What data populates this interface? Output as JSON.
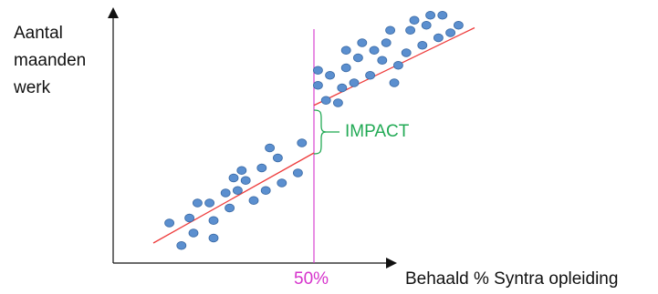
{
  "chart_data": {
    "type": "scatter",
    "title": "",
    "ylabel": "Aantal\nmaanden\nwerk",
    "xlabel": "Behaald % Syntra opleiding",
    "cutoff_label": "50%",
    "impact_label": "IMPACT",
    "colors": {
      "points": "#5b8fcf",
      "point_edge": "#3a6aa5",
      "fit_line": "#ee3b3b",
      "cutoff_line": "#d633cc",
      "impact": "#22aa55",
      "axes": "#111111"
    },
    "fit_lines": [
      {
        "x": [
          0.1,
          0.5
        ],
        "y": [
          0.08,
          0.44
        ]
      },
      {
        "x": [
          0.5,
          0.9
        ],
        "y": [
          0.63,
          0.94
        ]
      }
    ],
    "series": [
      {
        "points": [
          {
            "x": 0.14,
            "y": 0.16
          },
          {
            "x": 0.17,
            "y": 0.07
          },
          {
            "x": 0.19,
            "y": 0.18
          },
          {
            "x": 0.2,
            "y": 0.12
          },
          {
            "x": 0.21,
            "y": 0.24
          },
          {
            "x": 0.24,
            "y": 0.24
          },
          {
            "x": 0.25,
            "y": 0.1
          },
          {
            "x": 0.25,
            "y": 0.17
          },
          {
            "x": 0.28,
            "y": 0.28
          },
          {
            "x": 0.29,
            "y": 0.22
          },
          {
            "x": 0.3,
            "y": 0.34
          },
          {
            "x": 0.31,
            "y": 0.29
          },
          {
            "x": 0.32,
            "y": 0.37
          },
          {
            "x": 0.33,
            "y": 0.33
          },
          {
            "x": 0.35,
            "y": 0.25
          },
          {
            "x": 0.37,
            "y": 0.38
          },
          {
            "x": 0.38,
            "y": 0.29
          },
          {
            "x": 0.39,
            "y": 0.46
          },
          {
            "x": 0.41,
            "y": 0.42
          },
          {
            "x": 0.42,
            "y": 0.32
          },
          {
            "x": 0.46,
            "y": 0.36
          },
          {
            "x": 0.47,
            "y": 0.48
          }
        ]
      },
      {
        "points": [
          {
            "x": 0.51,
            "y": 0.71
          },
          {
            "x": 0.51,
            "y": 0.77
          },
          {
            "x": 0.53,
            "y": 0.65
          },
          {
            "x": 0.54,
            "y": 0.75
          },
          {
            "x": 0.56,
            "y": 0.64
          },
          {
            "x": 0.57,
            "y": 0.7
          },
          {
            "x": 0.58,
            "y": 0.78
          },
          {
            "x": 0.58,
            "y": 0.85
          },
          {
            "x": 0.6,
            "y": 0.72
          },
          {
            "x": 0.61,
            "y": 0.82
          },
          {
            "x": 0.62,
            "y": 0.88
          },
          {
            "x": 0.64,
            "y": 0.75
          },
          {
            "x": 0.65,
            "y": 0.85
          },
          {
            "x": 0.67,
            "y": 0.81
          },
          {
            "x": 0.68,
            "y": 0.88
          },
          {
            "x": 0.69,
            "y": 0.93
          },
          {
            "x": 0.7,
            "y": 0.72
          },
          {
            "x": 0.71,
            "y": 0.79
          },
          {
            "x": 0.73,
            "y": 0.84
          },
          {
            "x": 0.74,
            "y": 0.93
          },
          {
            "x": 0.75,
            "y": 0.97
          },
          {
            "x": 0.77,
            "y": 0.87
          },
          {
            "x": 0.78,
            "y": 0.95
          },
          {
            "x": 0.79,
            "y": 0.99
          },
          {
            "x": 0.81,
            "y": 0.9
          },
          {
            "x": 0.82,
            "y": 0.99
          },
          {
            "x": 0.84,
            "y": 0.92
          },
          {
            "x": 0.86,
            "y": 0.95
          }
        ]
      }
    ],
    "xlim": [
      0,
      1
    ],
    "ylim": [
      0,
      1
    ],
    "ticks": false,
    "grid": false
  }
}
